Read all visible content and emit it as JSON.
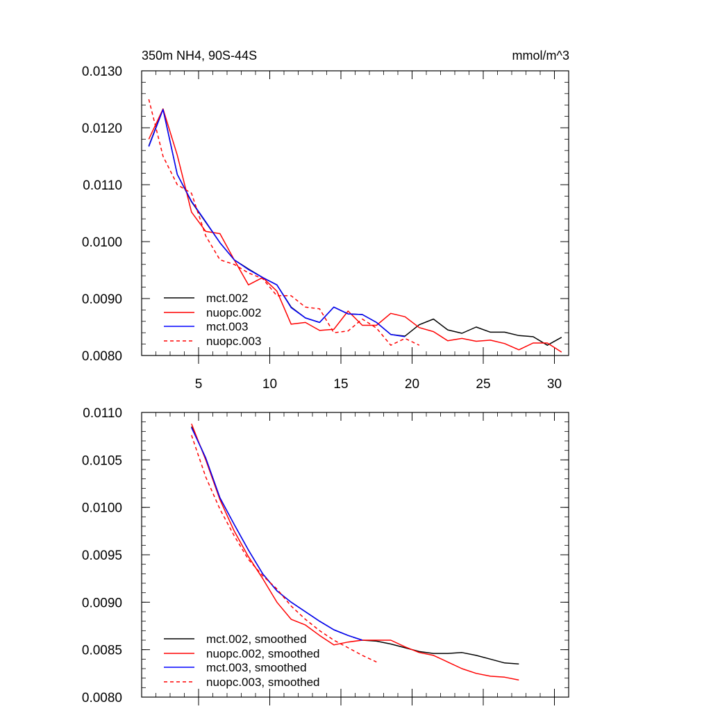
{
  "chart_data": [
    {
      "type": "line",
      "title": "350m NH4, 90S-44S",
      "units": "mmol/m^3",
      "xlabel": "",
      "ylabel": "",
      "xlim": [
        1,
        31
      ],
      "ylim": [
        0.008,
        0.013
      ],
      "xticks": [
        "5",
        "10",
        "15",
        "20",
        "25",
        "30"
      ],
      "yticks": [
        "0.0080",
        "0.0090",
        "0.0100",
        "0.0110",
        "0.0120",
        "0.0130"
      ],
      "legend_position": "bottom-left",
      "series": [
        {
          "name": "mct.002",
          "color": "#000000",
          "dash": "solid",
          "x": [
            1.5,
            2.5,
            3.5,
            4.5,
            5.5,
            6.5,
            7.5,
            8.5,
            9.5,
            10.5,
            11.5,
            12.5,
            13.5,
            14.5,
            15.5,
            16.5,
            17.5,
            18.5,
            19.5,
            20.5,
            21.5,
            22.5,
            23.5,
            24.5,
            25.5,
            26.5,
            27.5,
            28.5,
            29.5,
            30.5
          ],
          "y": [
            0.01168,
            0.01233,
            0.01118,
            0.0107,
            0.01034,
            0.00998,
            0.00968,
            0.00952,
            0.00937,
            0.00924,
            0.00885,
            0.00866,
            0.00858,
            0.00885,
            0.00873,
            0.00872,
            0.00858,
            0.00837,
            0.00834,
            0.00854,
            0.00864,
            0.00845,
            0.00839,
            0.0085,
            0.00841,
            0.00841,
            0.00835,
            0.00833,
            0.00818,
            0.00832
          ]
        },
        {
          "name": "nuopc.002",
          "color": "#ff0000",
          "dash": "solid",
          "x": [
            1.5,
            2.5,
            3.5,
            4.5,
            5.5,
            6.5,
            7.5,
            8.5,
            9.5,
            10.5,
            11.5,
            12.5,
            13.5,
            14.5,
            15.5,
            16.5,
            17.5,
            18.5,
            19.5,
            20.5,
            21.5,
            22.5,
            23.5,
            24.5,
            25.5,
            26.5,
            27.5,
            28.5,
            29.5,
            30.5
          ],
          "y": [
            0.0118,
            0.01233,
            0.01152,
            0.01052,
            0.01018,
            0.01014,
            0.00968,
            0.00924,
            0.00937,
            0.00913,
            0.00855,
            0.00858,
            0.00844,
            0.00846,
            0.00878,
            0.00853,
            0.00853,
            0.00874,
            0.00868,
            0.00849,
            0.00842,
            0.00826,
            0.0083,
            0.00825,
            0.00827,
            0.00821,
            0.0081,
            0.00822,
            0.00822,
            0.00806
          ]
        },
        {
          "name": "mct.003",
          "color": "#0000ff",
          "dash": "solid",
          "x": [
            1.5,
            2.5,
            3.5,
            4.5,
            5.5,
            6.5,
            7.5,
            8.5,
            9.5,
            10.5,
            11.5,
            12.5,
            13.5,
            14.5,
            15.5,
            16.5,
            17.5,
            18.5,
            19.5
          ],
          "y": [
            0.01167,
            0.01232,
            0.01118,
            0.01071,
            0.01035,
            0.00998,
            0.00968,
            0.00951,
            0.00937,
            0.00924,
            0.00884,
            0.00866,
            0.00858,
            0.00885,
            0.00873,
            0.00872,
            0.00858,
            0.00837,
            0.00833
          ]
        },
        {
          "name": "nuopc.003",
          "color": "#ff0000",
          "dash": "dashed",
          "x": [
            1.5,
            2.5,
            3.5,
            4.5,
            5.5,
            6.5,
            7.5,
            8.5,
            9.5,
            10.5,
            11.5,
            12.5,
            13.5,
            14.5,
            15.5,
            16.5,
            17.5,
            18.5,
            19.5,
            20.5
          ],
          "y": [
            0.0125,
            0.0115,
            0.011,
            0.01085,
            0.0101,
            0.00968,
            0.0096,
            0.00945,
            0.00935,
            0.00905,
            0.00905,
            0.00885,
            0.00882,
            0.0084,
            0.00843,
            0.00864,
            0.00848,
            0.00818,
            0.0083,
            0.00818
          ]
        }
      ]
    },
    {
      "type": "line",
      "title": "",
      "xlabel": "",
      "ylabel": "",
      "xlim": [
        1,
        31
      ],
      "ylim": [
        0.008,
        0.011
      ],
      "xticks": [
        "5",
        "10",
        "15",
        "20",
        "25",
        "30"
      ],
      "yticks": [
        "0.0080",
        "0.0085",
        "0.0090",
        "0.0095",
        "0.0100",
        "0.0105",
        "0.0110"
      ],
      "legend_position": "bottom-left",
      "series": [
        {
          "name": "mct.002, smoothed",
          "color": "#000000",
          "dash": "solid",
          "x": [
            4.5,
            5.5,
            6.5,
            7.5,
            8.5,
            9.5,
            10.5,
            11.5,
            12.5,
            13.5,
            14.5,
            15.5,
            16.5,
            17.5,
            18.5,
            19.5,
            20.5,
            21.5,
            22.5,
            23.5,
            24.5,
            25.5,
            26.5,
            27.5
          ],
          "y": [
            0.01085,
            0.01052,
            0.0101,
            0.00982,
            0.00955,
            0.0093,
            0.00912,
            0.009,
            0.0089,
            0.0088,
            0.00871,
            0.00865,
            0.0086,
            0.00859,
            0.00856,
            0.00852,
            0.00848,
            0.00846,
            0.00846,
            0.00847,
            0.00844,
            0.0084,
            0.00836,
            0.00835
          ]
        },
        {
          "name": "nuopc.002, smoothed",
          "color": "#ff0000",
          "dash": "solid",
          "x": [
            4.5,
            5.5,
            6.5,
            7.5,
            8.5,
            9.5,
            10.5,
            11.5,
            12.5,
            13.5,
            14.5,
            15.5,
            16.5,
            17.5,
            18.5,
            19.5,
            20.5,
            21.5,
            22.5,
            23.5,
            24.5,
            25.5,
            26.5,
            27.5
          ],
          "y": [
            0.01088,
            0.0105,
            0.01008,
            0.00975,
            0.00948,
            0.00925,
            0.009,
            0.00882,
            0.00876,
            0.00865,
            0.00855,
            0.00858,
            0.0086,
            0.0086,
            0.0086,
            0.00853,
            0.00847,
            0.00844,
            0.00837,
            0.0083,
            0.00825,
            0.00822,
            0.00821,
            0.00818
          ]
        },
        {
          "name": "mct.003, smoothed",
          "color": "#0000ff",
          "dash": "solid",
          "x": [
            4.5,
            5.5,
            6.5,
            7.5,
            8.5,
            9.5,
            10.5,
            11.5,
            12.5,
            13.5,
            14.5,
            15.5,
            16.5
          ],
          "y": [
            0.01084,
            0.01052,
            0.0101,
            0.00982,
            0.00955,
            0.0093,
            0.00912,
            0.009,
            0.0089,
            0.0088,
            0.00871,
            0.00865,
            0.0086
          ]
        },
        {
          "name": "nuopc.003, smoothed",
          "color": "#ff0000",
          "dash": "dashed",
          "x": [
            4.5,
            5.5,
            6.5,
            7.5,
            8.5,
            9.5,
            10.5,
            11.5,
            12.5,
            13.5,
            14.5,
            15.5,
            16.5,
            17.5
          ],
          "y": [
            0.01076,
            0.01032,
            0.00998,
            0.0097,
            0.00945,
            0.00928,
            0.00914,
            0.00896,
            0.00882,
            0.0087,
            0.0086,
            0.00852,
            0.00844,
            0.00837
          ]
        }
      ]
    }
  ]
}
